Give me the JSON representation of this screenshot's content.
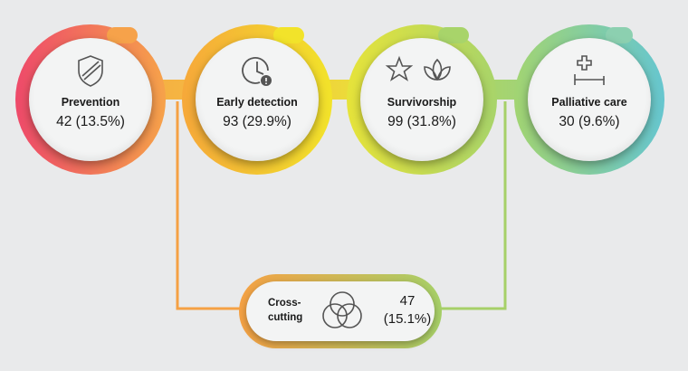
{
  "colors": {
    "prevention": [
      "#ee4a6a",
      "#f6a24a"
    ],
    "early_detection": [
      "#f6a83a",
      "#f2e32a"
    ],
    "survivorship": [
      "#e6e33a",
      "#a8d46a"
    ],
    "palliative_care": [
      "#a2d472",
      "#66c6cf"
    ],
    "cross_cutting": [
      "#f5a144",
      "#a6d068"
    ],
    "icon_stroke": "#555555"
  },
  "categories": [
    {
      "id": "prevention",
      "label": "Prevention",
      "value": "42 (13.5%)",
      "icon": "shield-icon"
    },
    {
      "id": "early_detection",
      "label": "Early detection",
      "value": "93 (29.9%)",
      "icon": "clock-icon"
    },
    {
      "id": "survivorship",
      "label": "Survivorship",
      "value": "99 (31.8%)",
      "icon": "star-lotus-icon"
    },
    {
      "id": "palliative_care",
      "label": "Palliative care",
      "value": "30 (9.6%)",
      "icon": "hospital-bed-icon"
    }
  ],
  "cross_cutting": {
    "label": "Cross-\ncutting",
    "label_line1": "Cross-",
    "label_line2": "cutting",
    "value_count": "47",
    "value_pct": "(15.1%)",
    "icon": "venn-icon"
  }
}
